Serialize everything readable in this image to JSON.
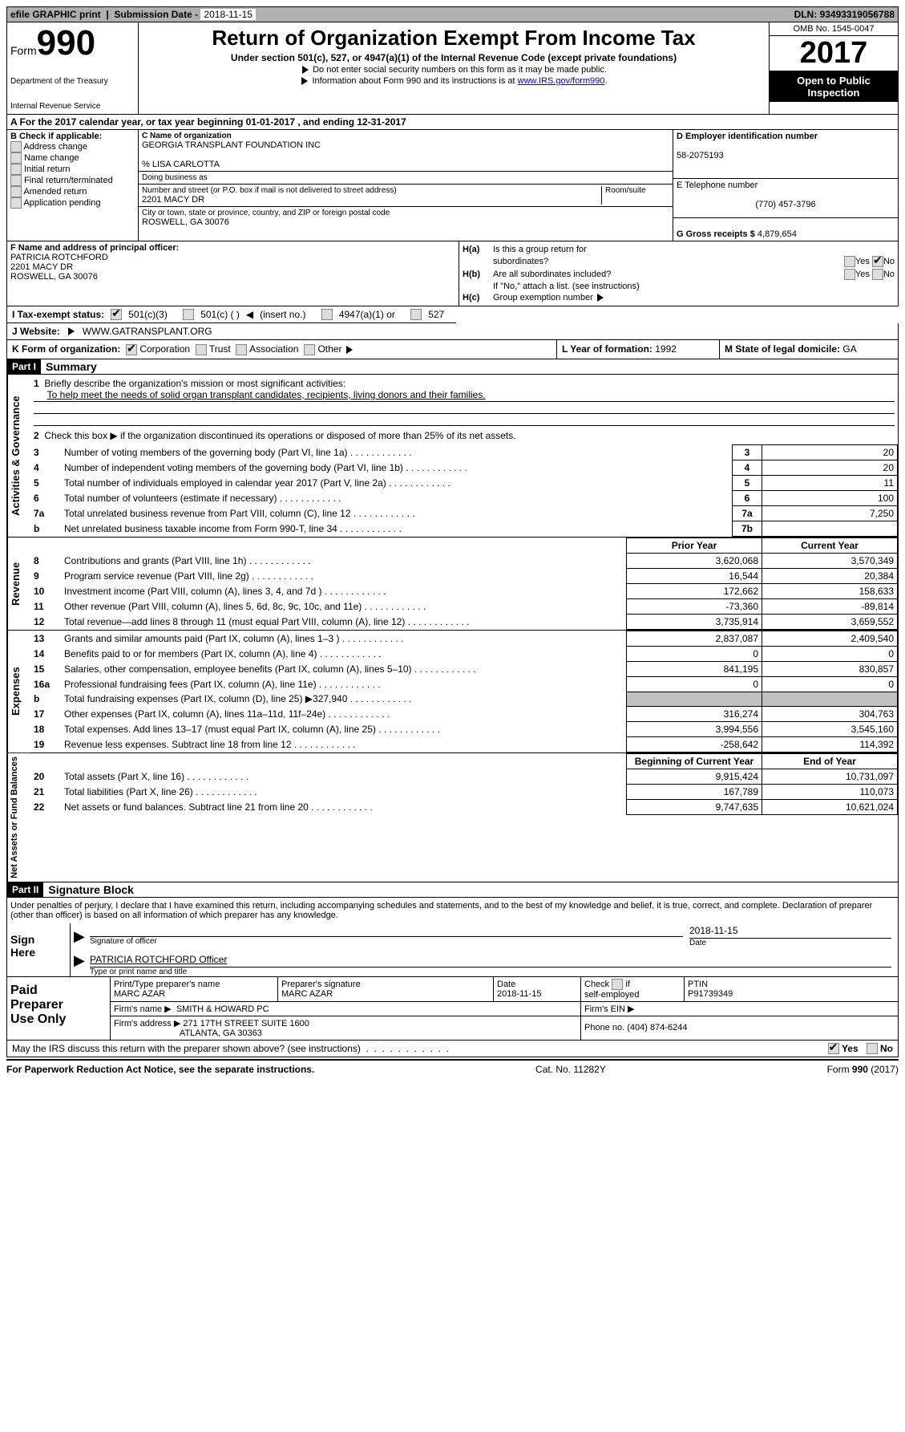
{
  "top": {
    "efile": "efile GRAPHIC print",
    "subdate_lbl": "Submission Date - ",
    "subdate": "2018-11-15",
    "dln_lbl": "DLN: ",
    "dln": "93493319056788"
  },
  "header": {
    "form_word": "Form",
    "form_no": "990",
    "dept1": "Department of the Treasury",
    "dept2": "Internal Revenue Service",
    "title": "Return of Organization Exempt From Income Tax",
    "sub1": "Under section 501(c), 527, or 4947(a)(1) of the Internal Revenue Code (except private foundations)",
    "sub2": "Do not enter social security numbers on this form as it may be made public.",
    "sub3_pre": "Information about Form 990 and its instructions is at ",
    "sub3_link": "www.IRS.gov/form990",
    "omb": "OMB No. 1545-0047",
    "year": "2017",
    "open1": "Open to Public",
    "open2": "Inspection"
  },
  "a_line": "A  For the 2017 calendar year, or tax year beginning 01-01-2017   , and ending 12-31-2017",
  "b": {
    "label": "B Check if applicable:",
    "opts": [
      "Address change",
      "Name change",
      "Initial return",
      "Final return/terminated",
      "Amended return",
      "Application pending"
    ]
  },
  "c": {
    "name_lbl": "C Name of organization",
    "name": "GEORGIA TRANSPLANT FOUNDATION INC",
    "care_lbl": "% LISA CARLOTTA",
    "dba_lbl": "Doing business as",
    "dba": "",
    "street_lbl": "Number and street (or P.O. box if mail is not delivered to street address)",
    "room_lbl": "Room/suite",
    "street": "2201 MACY DR",
    "city_lbl": "City or town, state or province, country, and ZIP or foreign postal code",
    "city": "ROSWELL, GA  30076"
  },
  "d": {
    "ein_lbl": "D Employer identification number",
    "ein": "58-2075193",
    "tel_lbl": "E Telephone number",
    "tel": "(770) 457-3796",
    "gross_lbl": "G Gross receipts $ ",
    "gross": "4,879,654"
  },
  "f": {
    "lbl": "F Name and address of principal officer:",
    "name": "PATRICIA ROTCHFORD",
    "addr1": "2201 MACY DR",
    "addr2": "ROSWELL, GA  30076"
  },
  "h": {
    "a_lbl": "H(a)",
    "a_txt1": "Is this a group return for",
    "a_txt2": "subordinates?",
    "b_lbl": "H(b)",
    "b_txt": "Are all subordinates included?",
    "b_note": "If \"No,\" attach a list. (see instructions)",
    "c_lbl": "H(c)",
    "c_txt": "Group exemption number",
    "yes": "Yes",
    "no": "No"
  },
  "i": {
    "lbl": "I  Tax-exempt status:",
    "o1": "501(c)(3)",
    "o2": "501(c) (   )",
    "o2b": "(insert no.)",
    "o3": "4947(a)(1) or",
    "o4": "527"
  },
  "j": {
    "lbl": "J  Website:",
    "val": "WWW.GATRANSPLANT.ORG"
  },
  "k": {
    "lbl": "K Form of organization:",
    "o1": "Corporation",
    "o2": "Trust",
    "o3": "Association",
    "o4": "Other"
  },
  "l": {
    "lbl": "L Year of formation: ",
    "val": "1992"
  },
  "m": {
    "lbl": "M State of legal domicile: ",
    "val": "GA"
  },
  "part1": {
    "lbl": "Part I",
    "title": "Summary"
  },
  "summary": {
    "tab1": "Activities & Governance",
    "q1_lbl": "Briefly describe the organization's mission or most significant activities:",
    "q1_val": "To help meet the needs of solid organ transplant candidates, recipients, living donors and their families.",
    "q2": "Check this box ▶       if the organization discontinued its operations or disposed of more than 25% of its net assets.",
    "rows_gov": [
      {
        "n": "3",
        "t": "Number of voting members of the governing body (Part VI, line 1a)",
        "l": "3",
        "v": "20"
      },
      {
        "n": "4",
        "t": "Number of independent voting members of the governing body (Part VI, line 1b)",
        "l": "4",
        "v": "20"
      },
      {
        "n": "5",
        "t": "Total number of individuals employed in calendar year 2017 (Part V, line 2a)",
        "l": "5",
        "v": "11"
      },
      {
        "n": "6",
        "t": "Total number of volunteers (estimate if necessary)",
        "l": "6",
        "v": "100"
      },
      {
        "n": "7a",
        "t": "Total unrelated business revenue from Part VIII, column (C), line 12",
        "l": "7a",
        "v": "7,250"
      },
      {
        "n": "b",
        "t": "Net unrelated business taxable income from Form 990-T, line 34",
        "l": "7b",
        "v": ""
      }
    ],
    "tab2": "Revenue",
    "head_prior": "Prior Year",
    "head_curr": "Current Year",
    "rows_rev": [
      {
        "n": "8",
        "t": "Contributions and grants (Part VIII, line 1h)",
        "p": "3,620,068",
        "c": "3,570,349"
      },
      {
        "n": "9",
        "t": "Program service revenue (Part VIII, line 2g)",
        "p": "16,544",
        "c": "20,384"
      },
      {
        "n": "10",
        "t": "Investment income (Part VIII, column (A), lines 3, 4, and 7d )",
        "p": "172,662",
        "c": "158,633"
      },
      {
        "n": "11",
        "t": "Other revenue (Part VIII, column (A), lines 5, 6d, 8c, 9c, 10c, and 11e)",
        "p": "-73,360",
        "c": "-89,814"
      },
      {
        "n": "12",
        "t": "Total revenue—add lines 8 through 11 (must equal Part VIII, column (A), line 12)",
        "p": "3,735,914",
        "c": "3,659,552"
      }
    ],
    "tab3": "Expenses",
    "rows_exp": [
      {
        "n": "13",
        "t": "Grants and similar amounts paid (Part IX, column (A), lines 1–3 )",
        "p": "2,837,087",
        "c": "2,409,540"
      },
      {
        "n": "14",
        "t": "Benefits paid to or for members (Part IX, column (A), line 4)",
        "p": "0",
        "c": "0"
      },
      {
        "n": "15",
        "t": "Salaries, other compensation, employee benefits (Part IX, column (A), lines 5–10)",
        "p": "841,195",
        "c": "830,857"
      },
      {
        "n": "16a",
        "t": "Professional fundraising fees (Part IX, column (A), line 11e)",
        "p": "0",
        "c": "0"
      },
      {
        "n": "b",
        "t": "Total fundraising expenses (Part IX, column (D), line 25) ▶327,940",
        "p": "_grey_",
        "c": "_grey_"
      },
      {
        "n": "17",
        "t": "Other expenses (Part IX, column (A), lines 11a–11d, 11f–24e)",
        "p": "316,274",
        "c": "304,763"
      },
      {
        "n": "18",
        "t": "Total expenses. Add lines 13–17 (must equal Part IX, column (A), line 25)",
        "p": "3,994,556",
        "c": "3,545,160"
      },
      {
        "n": "19",
        "t": "Revenue less expenses. Subtract line 18 from line 12",
        "p": "-258,642",
        "c": "114,392"
      }
    ],
    "tab4": "Net Assets or Fund Balances",
    "head_beg": "Beginning of Current Year",
    "head_end": "End of Year",
    "rows_net": [
      {
        "n": "20",
        "t": "Total assets (Part X, line 16)",
        "p": "9,915,424",
        "c": "10,731,097"
      },
      {
        "n": "21",
        "t": "Total liabilities (Part X, line 26)",
        "p": "167,789",
        "c": "110,073"
      },
      {
        "n": "22",
        "t": "Net assets or fund balances. Subtract line 21 from line 20",
        "p": "9,747,635",
        "c": "10,621,024"
      }
    ]
  },
  "part2": {
    "lbl": "Part II",
    "title": "Signature Block"
  },
  "sig": {
    "perjury": "Under penalties of perjury, I declare that I have examined this return, including accompanying schedules and statements, and to the best of my knowledge and belief, it is true, correct, and complete. Declaration of preparer (other than officer) is based on all information of which preparer has any knowledge.",
    "sign_here": "Sign Here",
    "date": "2018-11-15",
    "sig_officer": "Signature of officer",
    "date_lbl": "Date",
    "name_title": "PATRICIA ROTCHFORD  Officer",
    "name_title_lbl": "Type or print name and title"
  },
  "prep": {
    "lbl": "Paid Preparer Use Only",
    "pt_name_lbl": "Print/Type preparer's name",
    "pt_name": "MARC AZAR",
    "psig_lbl": "Preparer's signature",
    "psig": "MARC AZAR",
    "pdate_lbl": "Date",
    "pdate": "2018-11-15",
    "check_lbl": "Check         if self-employed",
    "ptin_lbl": "PTIN",
    "ptin": "P91739349",
    "firm_name_lbl": "Firm's name      ▶",
    "firm_name": "SMITH & HOWARD PC",
    "firm_ein_lbl": "Firm's EIN ▶",
    "firm_addr_lbl": "Firm's address ▶",
    "firm_addr1": "271 17TH STREET SUITE 1600",
    "firm_addr2": "ATLANTA, GA  30363",
    "phone_lbl": "Phone no. ",
    "phone": "(404) 874-6244"
  },
  "discuss": {
    "txt": "May the IRS discuss this return with the preparer shown above? (see instructions)",
    "yes": "Yes",
    "no": "No"
  },
  "footer": {
    "left": "For Paperwork Reduction Act Notice, see the separate instructions.",
    "mid": "Cat. No. 11282Y",
    "right_pre": "Form ",
    "right_form": "990",
    "right_suf": " (2017)"
  }
}
